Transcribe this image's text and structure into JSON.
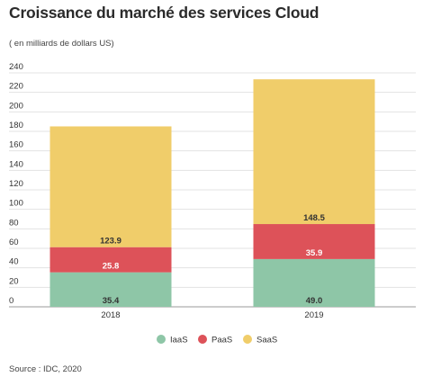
{
  "title": "Croissance du marché des services Cloud",
  "subtitle": "( en milliards de dollars US)",
  "source": "Source : IDC, 2020",
  "chart_data": {
    "type": "bar",
    "stacked": true,
    "categories": [
      "2018",
      "2019"
    ],
    "series": [
      {
        "name": "IaaS",
        "color": "#8ec6a7",
        "label_color": "#333333",
        "values": [
          35.4,
          49.0
        ],
        "labels": [
          "35.4",
          "49.0"
        ]
      },
      {
        "name": "PaaS",
        "color": "#dd5259",
        "label_color": "#ffffff",
        "values": [
          25.8,
          35.9
        ],
        "labels": [
          "25.8",
          "35.9"
        ]
      },
      {
        "name": "SaaS",
        "color": "#f0cd6a",
        "label_color": "#333333",
        "values": [
          123.9,
          148.5
        ],
        "labels": [
          "123.9",
          "148.5"
        ]
      }
    ],
    "yticks": [
      "0",
      "20",
      "40",
      "60",
      "80",
      "100",
      "120",
      "140",
      "160",
      "180",
      "200",
      "220",
      "240"
    ],
    "ylim": [
      0,
      240
    ],
    "grid": true,
    "legend_position": "bottom"
  }
}
